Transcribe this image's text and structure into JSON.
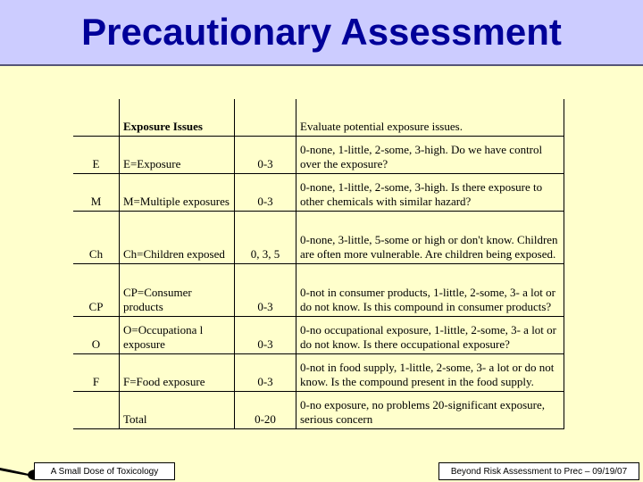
{
  "title": "Precautionary Assessment",
  "table": {
    "header": {
      "issue": "Exposure Issues",
      "desc": "Evaluate potential exposure issues."
    },
    "rows": [
      {
        "code": "E",
        "issue": "E=Exposure",
        "score": "0-3",
        "desc": "0-none, 1-little, 2-some, 3-high. Do we have control over the exposure?"
      },
      {
        "code": "M",
        "issue": "M=Multiple exposures",
        "score": "0-3",
        "desc": "0-none, 1-little, 2-some, 3-high. Is there exposure to other chemicals with similar hazard?"
      },
      {
        "code": "Ch",
        "issue": "Ch=Children exposed",
        "score": "0, 3, 5",
        "desc": "0-none, 3-little, 5-some or high or don't know. Children are often more vulnerable. Are children being exposed."
      },
      {
        "code": "CP",
        "issue": "CP=Consumer products",
        "score": "0-3",
        "desc": "0-not in consumer products, 1-little, 2-some, 3- a lot or do not know.  Is this compound in consumer products?"
      },
      {
        "code": "O",
        "issue": "O=Occupationa l exposure",
        "score": "0-3",
        "desc": "0-no occupational exposure, 1-little, 2-some, 3- a lot or do not know. Is there occupational exposure?"
      },
      {
        "code": "F",
        "issue": "F=Food exposure",
        "score": "0-3",
        "desc": "0-not in food supply, 1-little, 2-some, 3- a lot or do not know.  Is the compound present in the food supply."
      }
    ],
    "total": {
      "issue": "Total",
      "score": "0-20",
      "desc": "0-no exposure, no problems 20-significant exposure, serious concern"
    }
  },
  "footer": {
    "left": "A Small Dose of Toxicology",
    "right": "Beyond Risk Assessment to Prec – 09/19/07"
  }
}
